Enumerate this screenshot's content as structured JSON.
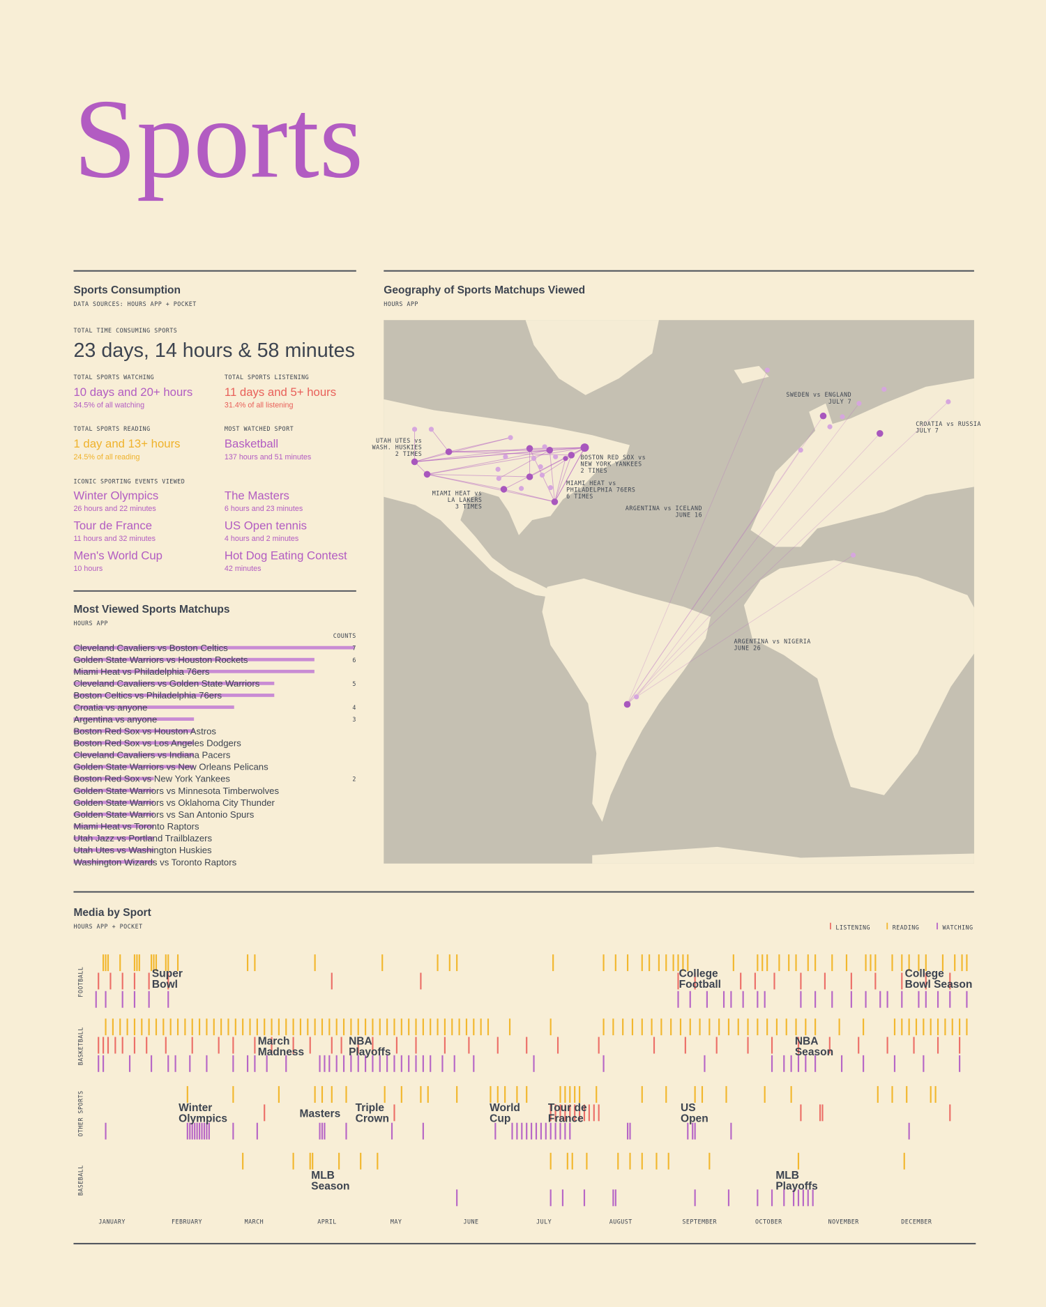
{
  "header": {
    "title": "Sports"
  },
  "consumption": {
    "title": "Sports Consumption",
    "subtitle": "DATA SOURCES: HOURS APP + POCKET",
    "total": {
      "label": "TOTAL TIME CONSUMING SPORTS",
      "value": "23 days, 14 hours & 58 minutes"
    },
    "stats": [
      {
        "label": "TOTAL SPORTS WATCHING",
        "value": "10 days and 20+ hours",
        "note": "34.5% of all watching"
      },
      {
        "label": "TOTAL SPORTS LISTENING",
        "value": "11 days and 5+ hours",
        "note": "31.4% of all listening"
      },
      {
        "label": "TOTAL SPORTS READING",
        "value": "1 day and 13+ hours",
        "note": "24.5% of all reading"
      },
      {
        "label": "MOST WATCHED SPORT",
        "value": "Basketball",
        "note": "137 hours and 51 minutes"
      }
    ],
    "events": {
      "label": "ICONIC SPORTING EVENTS VIEWED",
      "items": [
        {
          "name": "Winter Olympics",
          "time": "26 hours and 22 minutes"
        },
        {
          "name": "The Masters",
          "time": "6 hours and 23 minutes"
        },
        {
          "name": "Tour de France",
          "time": "11 hours and 32 minutes"
        },
        {
          "name": "US Open tennis",
          "time": "4 hours and 2 minutes"
        },
        {
          "name": "Men's World Cup",
          "time": "10 hours"
        },
        {
          "name": "Hot Dog Eating Contest",
          "time": "42 minutes"
        }
      ]
    }
  },
  "map": {
    "title": "Geography of Sports Matchups Viewed",
    "subtitle": "HOURS APP",
    "annotations": [
      [
        "UTAH UTES vs",
        "WASH. HUSKIES",
        "2 TIMES"
      ],
      [
        "BOSTON RED SOX vs",
        "NEW YORK YANKEES",
        "2 TIMES"
      ],
      [
        "MIAMI HEAT vs",
        "PHILADELPHIA 76ERS",
        "6 TIMES"
      ],
      [
        "MIAMI HEAT vs",
        "LA LAKERS",
        "3 TIMES"
      ],
      [
        "ARGENTINA vs ICELAND",
        "JUNE 16"
      ],
      [
        "SWEDEN vs ENGLAND",
        "JULY 7"
      ],
      [
        "CROATIA vs RUSSIA",
        "JULY 7"
      ],
      [
        "ARGENTINA vs NIGERIA",
        "JUNE 26"
      ]
    ]
  },
  "chart_data": [
    {
      "type": "bar",
      "orientation": "horizontal",
      "title": "Most Viewed Sports Matchups",
      "subtitle": "HOURS APP",
      "value_header": "COUNTS",
      "color": "#c98bd4",
      "categories": [
        "Cleveland Cavaliers vs Boston Celtics",
        "Golden State Warriors vs Houston Rockets",
        "Miami Heat vs Philadelphia 76ers",
        "Cleveland Cavaliers vs Golden State Warriors",
        "Boston Celtics vs Philadelphia 76ers",
        "Croatia vs anyone",
        "Argentina vs anyone",
        "Boston Red Sox vs Houston Astros",
        "Boston Red Sox vs Los Angeles Dodgers",
        "Cleveland Cavaliers vs Indiana Pacers",
        "Golden State Warriors vs New Orleans Pelicans",
        "Boston Red Sox vs New York Yankees",
        "Golden State Warriors vs Minnesota Timberwolves",
        "Golden State Warriors vs Oklahoma City Thunder",
        "Golden State Warriors vs San Antonio Spurs",
        "Miami Heat vs Toronto Raptors",
        "Utah Jazz vs Portland Trailblazers",
        "Utah Utes vs Washington Huskies",
        "Washington Wizards vs Toronto Raptors"
      ],
      "values": [
        7,
        6,
        6,
        5,
        5,
        4,
        3,
        3,
        3,
        3,
        3,
        2,
        2,
        2,
        2,
        2,
        2,
        2,
        2
      ]
    },
    {
      "type": "event-strip",
      "title": "Media by Sport",
      "subtitle": "HOURS APP + POCKET",
      "xlim": [
        1,
        365
      ],
      "months": [
        "JANUARY",
        "FEBRUARY",
        "MARCH",
        "APRIL",
        "MAY",
        "JUNE",
        "JULY",
        "AUGUST",
        "SEPTEMBER",
        "OCTOBER",
        "NOVEMBER",
        "DECEMBER"
      ],
      "series": [
        {
          "name": "LISTENING",
          "color": "#ec6f68"
        },
        {
          "name": "READING",
          "color": "#f2b72e"
        },
        {
          "name": "WATCHING",
          "color": "#b766c6"
        }
      ],
      "rows": [
        {
          "name": "FOOTBALL",
          "values": [
            [
              2,
              7,
              12,
              17,
              23,
              31,
              99,
              136,
              243,
              250,
              269,
              275,
              283,
              294,
              304,
              315,
              325,
              336,
              346,
              356
            ],
            [
              4,
              5,
              6,
              11,
              17,
              18,
              19,
              24,
              25,
              26,
              30,
              31,
              35,
              64,
              67,
              92,
              120,
              143,
              148,
              151,
              191,
              212,
              217,
              222,
              228,
              231,
              235,
              238,
              241,
              243,
              245,
              247,
              266,
              276,
              278,
              280,
              285,
              289,
              292,
              297,
              300,
              307,
              313,
              321,
              323,
              325,
              332,
              336,
              339,
              343,
              346,
              353,
              358,
              361,
              363
            ],
            [
              1,
              5,
              12,
              17,
              23,
              31,
              243,
              248,
              255,
              262,
              265,
              270,
              276,
              279,
              294,
              300,
              307,
              315,
              321,
              327,
              330,
              336,
              343,
              346,
              351,
              356,
              363
            ]
          ],
          "annotations": [
            [
              "Super",
              "Bowl"
            ],
            [
              "College",
              "Football"
            ],
            [
              "College",
              "Bowl Season"
            ]
          ]
        },
        {
          "name": "BASKETBALL",
          "values": [
            [
              2,
              4,
              6,
              9,
              12,
              17,
              22,
              30,
              41,
              52,
              58,
              67,
              74,
              83,
              90,
              99,
              103,
              110,
              116,
              126,
              134,
              146,
              156,
              168,
              180,
              193,
              210,
              233,
              246,
              259,
              272,
              282,
              293,
              306,
              318,
              330,
              341,
              351,
              360
            ],
            [
              5,
              8,
              11,
              14,
              17,
              20,
              23,
              26,
              29,
              32,
              35,
              38,
              41,
              44,
              47,
              50,
              53,
              56,
              59,
              62,
              65,
              68,
              71,
              74,
              77,
              80,
              83,
              86,
              89,
              92,
              95,
              98,
              101,
              104,
              107,
              110,
              113,
              116,
              119,
              122,
              125,
              128,
              131,
              134,
              137,
              140,
              143,
              146,
              149,
              152,
              155,
              158,
              161,
              164,
              173,
              190,
              212,
              216,
              220,
              224,
              228,
              232,
              236,
              240,
              244,
              248,
              252,
              256,
              260,
              264,
              268,
              272,
              276,
              280,
              284,
              288,
              292,
              296,
              300,
              310,
              320,
              333,
              336,
              339,
              342,
              345,
              348,
              351,
              354,
              357,
              360,
              363
            ],
            [
              2,
              4,
              15,
              24,
              31,
              34,
              40,
              47,
              58,
              64,
              67,
              72,
              80,
              94,
              96,
              98,
              101,
              104,
              107,
              110,
              113,
              116,
              119,
              122,
              125,
              128,
              131,
              134,
              137,
              140,
              145,
              150,
              158,
              183,
              212,
              254,
              282,
              287,
              290,
              293,
              296,
              300,
              311,
              320,
              333,
              345,
              360
            ]
          ],
          "annotations": [
            [
              "March",
              "Madness"
            ],
            [
              "NBA",
              "Playoffs"
            ],
            [
              "NBA",
              "Season"
            ]
          ]
        },
        {
          "name": "OTHER SPORTS",
          "values": [
            [
              71,
              125,
              190,
              192,
              194,
              196,
              198,
              200,
              202,
              204,
              206,
              208,
              210,
              294,
              302,
              303,
              356
            ],
            [
              39,
              58,
              77,
              92,
              95,
              99,
              105,
              121,
              128,
              136,
              139,
              151,
              165,
              168,
              171,
              176,
              180,
              194,
              196,
              198,
              200,
              202,
              209,
              228,
              238,
              250,
              253,
              263,
              279,
              290,
              326,
              332,
              338,
              348,
              350
            ],
            [
              5,
              39,
              40,
              41,
              42,
              43,
              44,
              45,
              46,
              47,
              48,
              58,
              68,
              94,
              95,
              96,
              105,
              124,
              137,
              167,
              174,
              176,
              178,
              180,
              182,
              184,
              186,
              188,
              190,
              192,
              194,
              196,
              198,
              222,
              223,
              247,
              249,
              250,
              265,
              339
            ]
          ],
          "annotations": [
            [
              "Winter",
              "Olympics"
            ],
            [
              "Masters"
            ],
            [
              "Triple",
              "Crown"
            ],
            [
              "World",
              "Cup"
            ],
            [
              "Tour de",
              "France"
            ],
            [
              "US",
              "Open"
            ]
          ]
        },
        {
          "name": "BASEBALL",
          "values": [
            [],
            [
              62,
              83,
              90,
              91,
              102,
              111,
              118,
              190,
              197,
              199,
              205,
              218,
              223,
              228,
              234,
              239,
              256,
              293,
              337
            ],
            [
              151,
              190,
              195,
              204,
              216,
              217,
              250,
              264,
              276,
              282,
              287,
              291,
              293,
              295,
              297,
              299
            ]
          ],
          "annotations": [
            [
              "MLB",
              "Season"
            ],
            [
              "MLB",
              "Playoffs"
            ]
          ]
        }
      ]
    }
  ]
}
